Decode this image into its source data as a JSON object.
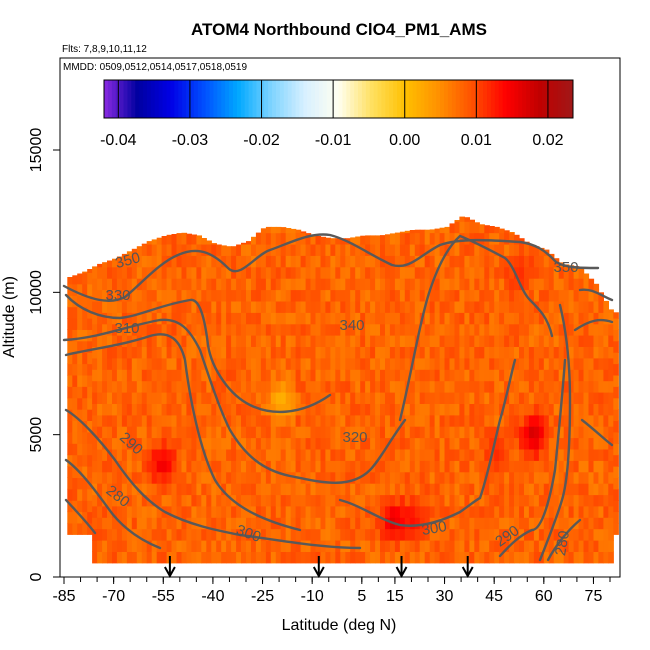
{
  "chart_data": {
    "type": "heatmap",
    "title": "ATOM4 Northbound ClO4_PM1_AMS",
    "flights_text": "Flts: 7,8,9,10,11,12",
    "dates_text": "MMDD: 0509,0512,0514,0517,0518,0519",
    "xlabel": "Latitude (deg N)",
    "ylabel": "Altitude (m)",
    "xlim": [
      -85,
      85
    ],
    "ylim": [
      0,
      17500
    ],
    "x_ticks": [
      "-85",
      "-70",
      "-55",
      "-40",
      "-25",
      "-10",
      "5",
      "15",
      "30",
      "45",
      "60",
      "75"
    ],
    "x_tick_values": [
      -85,
      -70,
      -55,
      -40,
      -25,
      -10,
      5,
      15,
      30,
      45,
      60,
      75
    ],
    "y_ticks": [
      "0",
      "5000",
      "10000",
      "15000"
    ],
    "y_tick_values": [
      0,
      5000,
      10000,
      15000
    ],
    "colorbar": {
      "range": [
        -0.042,
        0.0235
      ],
      "ticks": [
        "-0.04",
        "-0.03",
        "-0.02",
        "-0.01",
        "0.00",
        "0.01",
        "0.02"
      ],
      "tick_values": [
        -0.04,
        -0.03,
        -0.02,
        -0.01,
        0.0,
        0.01,
        0.02
      ],
      "colors": [
        "#8a2be2",
        "#0000a0",
        "#0000e6",
        "#0050ff",
        "#00a8ff",
        "#7fd4ff",
        "#d8f0ff",
        "#fffff0",
        "#ffe060",
        "#ffc000",
        "#ff9000",
        "#ff5000",
        "#ff0000",
        "#c00000",
        "#a01818"
      ]
    },
    "contour_labels": [
      "350",
      "330",
      "310",
      "340",
      "320",
      "290",
      "280",
      "300",
      "300",
      "290",
      "280",
      "350"
    ],
    "arrow_latitudes": [
      -53,
      -8,
      17,
      37
    ],
    "envelope": {
      "lat": [
        -85,
        -80,
        -75,
        -70,
        -65,
        -60,
        -55,
        -50,
        -45,
        -40,
        -35,
        -30,
        -25,
        -20,
        -15,
        -10,
        -5,
        0,
        5,
        10,
        15,
        20,
        25,
        30,
        35,
        40,
        45,
        50,
        55,
        60,
        65,
        70,
        75,
        80
      ],
      "top_alt": [
        10500,
        10700,
        11000,
        11200,
        11500,
        11800,
        12000,
        12100,
        12000,
        11700,
        11600,
        11800,
        12300,
        12300,
        12200,
        12000,
        11900,
        11900,
        12000,
        12000,
        12100,
        12200,
        12200,
        12300,
        12700,
        12400,
        12300,
        12100,
        11700,
        11500,
        11000,
        10900,
        10300,
        9300
      ]
    },
    "field_anomalies": [
      {
        "lat": -56,
        "alt": 3800,
        "value": 0.016
      },
      {
        "lat": 14,
        "alt": 1800,
        "value": 0.017
      },
      {
        "lat": 20,
        "alt": 1800,
        "value": 0.014
      },
      {
        "lat": 56,
        "alt": 4800,
        "value": 0.018
      },
      {
        "lat": 45,
        "alt": 4200,
        "value": 0.012
      },
      {
        "lat": -20,
        "alt": 6000,
        "value": 0.001
      },
      {
        "lat": 52,
        "alt": 10500,
        "value": 0.012
      }
    ],
    "background_value_range": [
      0.004,
      0.01
    ]
  }
}
